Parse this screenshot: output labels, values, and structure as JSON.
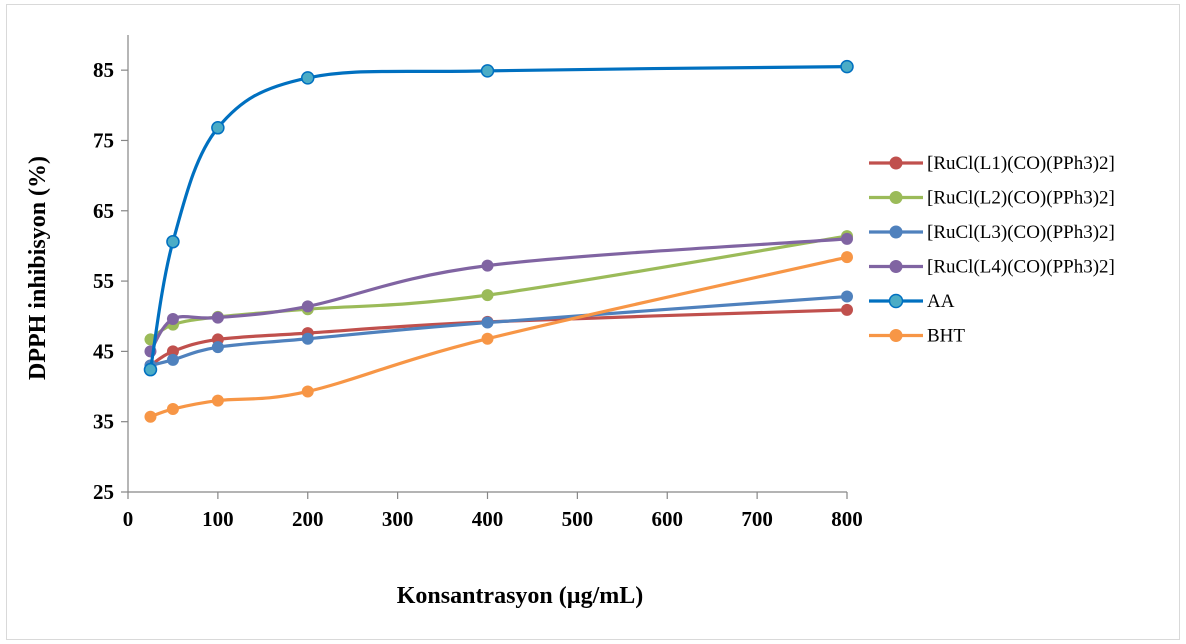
{
  "chart_data": {
    "type": "line",
    "xlabel": "Konsantrasyon (µg/mL)",
    "ylabel": "DPPH inhibisyon (%)",
    "xlim": [
      0,
      800
    ],
    "ylim": [
      25,
      90
    ],
    "x_ticks": [
      "0",
      "100",
      "200",
      "300",
      "400",
      "500",
      "600",
      "700",
      "800"
    ],
    "y_ticks": [
      "25",
      "35",
      "45",
      "55",
      "65",
      "75",
      "85"
    ],
    "x_tick_values": [
      0,
      100,
      200,
      300,
      400,
      500,
      600,
      700,
      800
    ],
    "y_tick_values": [
      25,
      35,
      45,
      55,
      65,
      75,
      85
    ],
    "x": [
      25,
      50,
      100,
      200,
      400,
      800
    ],
    "grid": false,
    "legend_position": "right",
    "series": [
      {
        "name": "[RuCl(L1)(CO)(PPh3)2]",
        "color": "#c0504d",
        "values": [
          43.0,
          45.0,
          46.7,
          47.6,
          49.2,
          50.9
        ]
      },
      {
        "name": "[RuCl(L2)(CO)(PPh3)2]",
        "color": "#9bbb59",
        "values": [
          46.7,
          48.8,
          49.9,
          51.0,
          53.0,
          61.4
        ]
      },
      {
        "name": "[RuCl(L3)(CO)(PPh3)2]",
        "color": "#4f81bd",
        "values": [
          43.0,
          43.8,
          45.6,
          46.8,
          49.1,
          52.8
        ]
      },
      {
        "name": "[RuCl(L4)(CO)(PPh3)2]",
        "color": "#8064a2",
        "values": [
          45.0,
          49.6,
          49.8,
          51.4,
          57.2,
          61.0
        ]
      },
      {
        "name": "AA",
        "color": "#0070c0",
        "marker_fill": "#4bacc6",
        "values": [
          42.4,
          60.6,
          76.8,
          83.9,
          84.9,
          85.5
        ]
      },
      {
        "name": "BHT",
        "color": "#f79646",
        "values": [
          35.7,
          36.8,
          38.0,
          39.3,
          46.8,
          58.4
        ]
      }
    ]
  }
}
